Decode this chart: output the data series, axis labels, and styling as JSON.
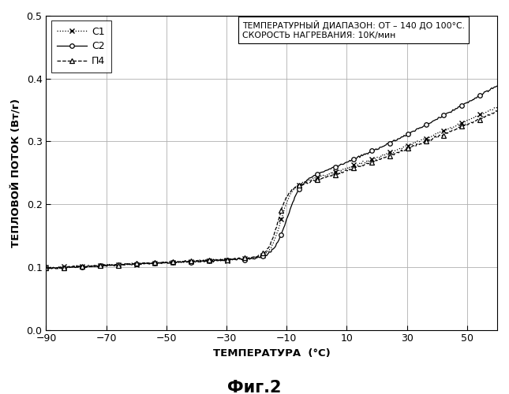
{
  "title": "Фиг.2",
  "ylabel": "ТЕПЛОВОЙ ПОТОК (Вт/г)",
  "xlabel": "ТЕМПЕРАТУРА  (°C)",
  "annotation_line1": "ТЕМПЕРАТУРНЫЙ ДИАПАЗОН: ОТ – 140 ДО 100°C.",
  "annotation_line2": "СКОРОСТЬ НАГРЕВАНИЯ: 10К/мин",
  "xlim": [
    -90,
    60
  ],
  "ylim": [
    0.0,
    0.5
  ],
  "xticks": [
    -90,
    -70,
    -50,
    -30,
    -10,
    10,
    30,
    50
  ],
  "yticks": [
    0.0,
    0.1,
    0.2,
    0.3,
    0.4,
    0.5
  ],
  "legend_labels": [
    "С1",
    "С2",
    "П4"
  ],
  "bg_color": "#ffffff",
  "grid_color": "#c8c8c8"
}
